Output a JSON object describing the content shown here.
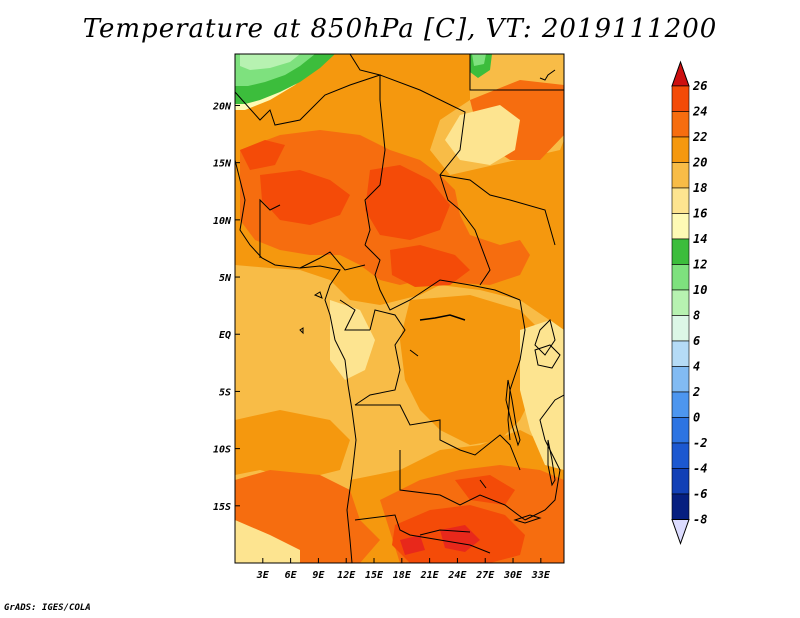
{
  "title": "Temperature at 850hPa [C], VT: 2019111200",
  "credit": "GrADS: IGES/COLA",
  "map": {
    "variable": "Temperature at 850hPa",
    "units": "C",
    "valid_time": "2019111200",
    "lon_range": [
      0,
      35.5
    ],
    "lat_range": [
      -20,
      24.5
    ],
    "lon_ticks": [
      "3E",
      "6E",
      "9E",
      "12E",
      "15E",
      "18E",
      "21E",
      "24E",
      "27E",
      "30E",
      "33E"
    ],
    "lon_tick_values": [
      3,
      6,
      9,
      12,
      15,
      18,
      21,
      24,
      27,
      30,
      33
    ],
    "lat_ticks": [
      "20N",
      "15N",
      "10N",
      "5N",
      "EQ",
      "5S",
      "10S",
      "15S"
    ],
    "lat_tick_values": [
      20,
      15,
      10,
      5,
      0,
      -5,
      -10,
      -15
    ]
  },
  "colorbar": {
    "levels": [
      "26",
      "24",
      "22",
      "20",
      "18",
      "16",
      "14",
      "12",
      "10",
      "8",
      "6",
      "4",
      "2",
      "0",
      "-2",
      "-4",
      "-6",
      "-8"
    ],
    "colors": [
      "#e8281b",
      "#f44b08",
      "#f66d0f",
      "#f5980e",
      "#f8bc47",
      "#fde490",
      "#fefab5",
      "#3cbd3c",
      "#7ee17e",
      "#b7f2b1",
      "#dcf7e7",
      "#b5dbf6",
      "#82bbf3",
      "#4d96ef",
      "#2d74e2",
      "#1c58d0",
      "#1240b6",
      "#061f80",
      "#040c5a"
    ],
    "arrow_top_color": "#cd1010",
    "arrow_bottom_color": "#dcdcff"
  }
}
